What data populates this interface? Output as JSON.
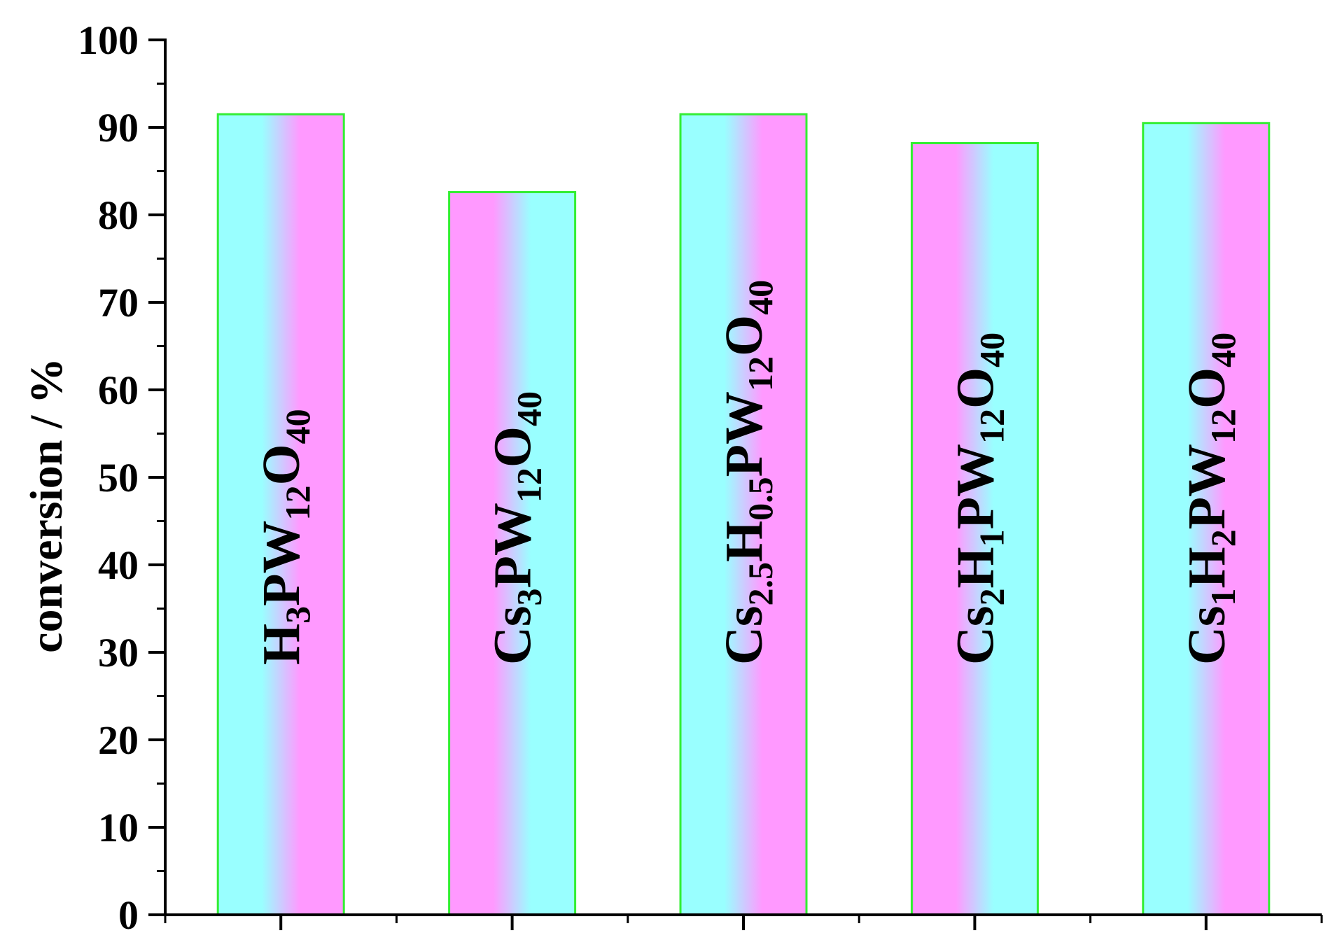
{
  "chart_data": {
    "type": "bar",
    "title": "",
    "xlabel": "",
    "ylabel": "conversion / %",
    "ylim": [
      0,
      100
    ],
    "yticks": [
      0,
      10,
      20,
      30,
      40,
      50,
      60,
      70,
      80,
      90,
      100
    ],
    "grid": false,
    "legend": "none",
    "categories": [
      {
        "parts": [
          {
            "t": "H"
          },
          {
            "t": "3",
            "sub": true
          },
          {
            "t": "PW"
          },
          {
            "t": "12",
            "sub": true
          },
          {
            "t": "O"
          },
          {
            "t": "40",
            "sub": true
          }
        ]
      },
      {
        "parts": [
          {
            "t": "Cs"
          },
          {
            "t": "3",
            "sub": true
          },
          {
            "t": "PW"
          },
          {
            "t": "12",
            "sub": true
          },
          {
            "t": "O"
          },
          {
            "t": "40",
            "sub": true
          }
        ]
      },
      {
        "parts": [
          {
            "t": "Cs"
          },
          {
            "t": "2.5",
            "sub": true
          },
          {
            "t": "H"
          },
          {
            "t": "0.5",
            "sub": true
          },
          {
            "t": "PW"
          },
          {
            "t": "12",
            "sub": true
          },
          {
            "t": "O"
          },
          {
            "t": "40",
            "sub": true
          }
        ]
      },
      {
        "parts": [
          {
            "t": "Cs"
          },
          {
            "t": "2",
            "sub": true
          },
          {
            "t": "H"
          },
          {
            "t": "1",
            "sub": true
          },
          {
            "t": "PW"
          },
          {
            "t": "12",
            "sub": true
          },
          {
            "t": "O"
          },
          {
            "t": "40",
            "sub": true
          }
        ]
      },
      {
        "parts": [
          {
            "t": "Cs"
          },
          {
            "t": "1",
            "sub": true
          },
          {
            "t": "H"
          },
          {
            "t": "2",
            "sub": true
          },
          {
            "t": "PW"
          },
          {
            "t": "12",
            "sub": true
          },
          {
            "t": "O"
          },
          {
            "t": "40",
            "sub": true
          }
        ]
      }
    ],
    "values": [
      91.5,
      82.6,
      91.5,
      88.2,
      90.5
    ],
    "colors": {
      "bar_border": "#33ee33",
      "gradient_pink": "#ff99ff",
      "gradient_cyan": "#99ffff",
      "axis": "#000000"
    }
  }
}
